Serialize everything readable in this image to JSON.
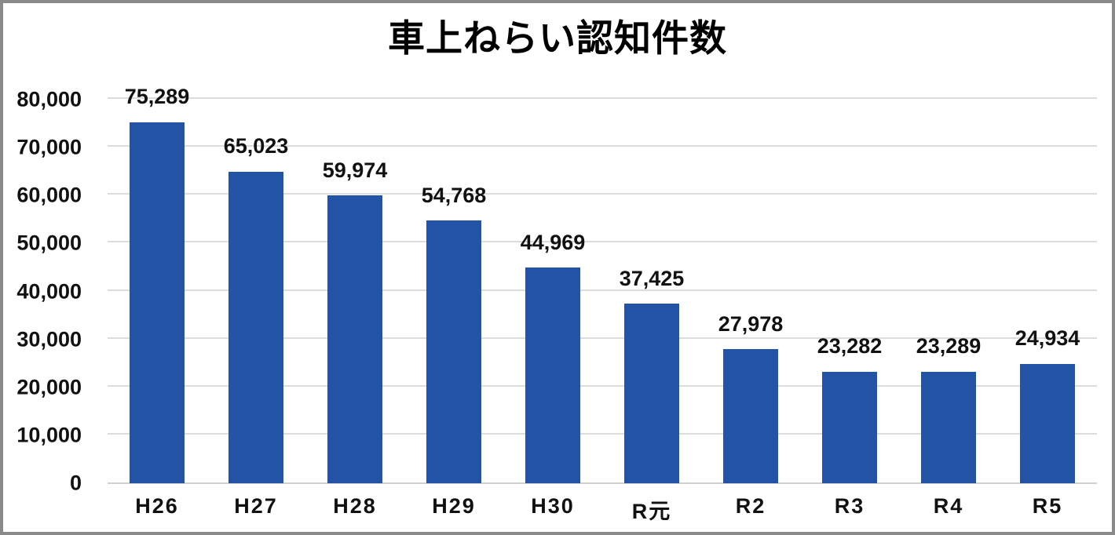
{
  "title": "車上ねらい認知件数",
  "colors": {
    "bar": "#2353A5",
    "gridline": "#DCDCDC",
    "axis_line": "#CFCFCF",
    "frame_border": "#8A8A8A",
    "text": "#111111",
    "background": "#FFFFFF"
  },
  "chart_data": {
    "type": "bar",
    "title": "車上ねらい認知件数",
    "categories": [
      "H26",
      "H27",
      "H28",
      "H29",
      "H30",
      "R元",
      "R2",
      "R3",
      "R4",
      "R5"
    ],
    "values": [
      75289,
      65023,
      59974,
      54768,
      44969,
      37425,
      27978,
      23282,
      23289,
      24934
    ],
    "data_labels": [
      "75,289",
      "65,023",
      "59,974",
      "54,768",
      "44,969",
      "37,425",
      "27,978",
      "23,282",
      "23,289",
      "24,934"
    ],
    "xlabel": "",
    "ylabel": "",
    "ylim": [
      0,
      80000
    ],
    "ytick_interval": 10000,
    "ytick_labels": [
      "0",
      "10,000",
      "20,000",
      "30,000",
      "40,000",
      "50,000",
      "60,000",
      "70,000",
      "80,000"
    ],
    "grid": true,
    "legend": false,
    "bar_color": "#2353A5"
  }
}
